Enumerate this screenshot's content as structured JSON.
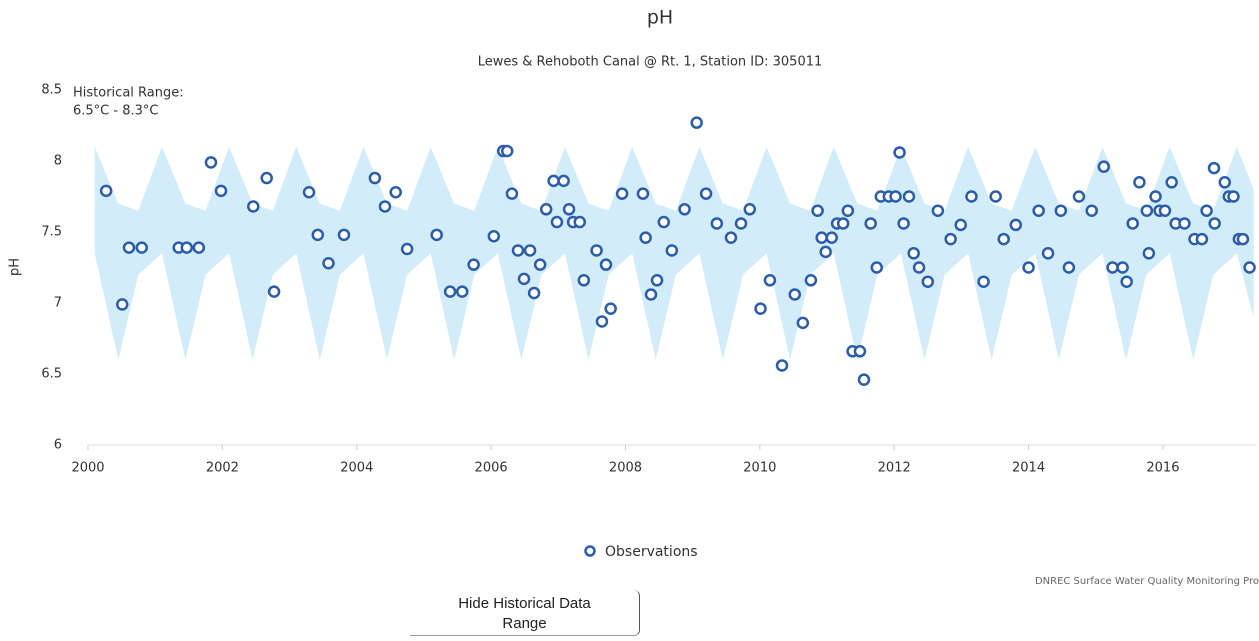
{
  "chart_data": {
    "type": "scatter",
    "title": "pH",
    "subtitle": "Lewes & Rehoboth Canal @ Rt. 1, Station ID: 305011",
    "y_label": "pH",
    "annotation": [
      "Historical Range:",
      "6.5°C - 8.3°C"
    ],
    "credit": "DNREC Surface Water Quality Monitoring Pro",
    "button": [
      "Hide Historical Data",
      "Range"
    ],
    "xlim": [
      2000,
      2017.4
    ],
    "xticks": [
      2000,
      2002,
      2004,
      2006,
      2008,
      2010,
      2012,
      2014,
      2016
    ],
    "ylim": [
      6,
      8.5
    ],
    "yticks": [
      6,
      6.5,
      7,
      7.5,
      8,
      8.5
    ],
    "grid": false,
    "band": {
      "color": "#cdeaf8",
      "x": [
        2000.1,
        2000.45,
        2000.75,
        2001.1,
        2001.45,
        2001.75,
        2002.1,
        2002.45,
        2002.75,
        2003.1,
        2003.45,
        2003.75,
        2004.1,
        2004.45,
        2004.75,
        2005.1,
        2005.45,
        2005.75,
        2006.1,
        2006.45,
        2006.75,
        2007.1,
        2007.45,
        2007.75,
        2008.1,
        2008.45,
        2008.75,
        2009.1,
        2009.45,
        2009.75,
        2010.1,
        2010.45,
        2010.75,
        2011.1,
        2011.45,
        2011.75,
        2012.1,
        2012.45,
        2012.75,
        2013.1,
        2013.45,
        2013.75,
        2014.1,
        2014.45,
        2014.75,
        2015.1,
        2015.45,
        2015.75,
        2016.1,
        2016.45,
        2016.75,
        2017.1,
        2017.35
      ],
      "upper": [
        8.1,
        7.7,
        7.65,
        8.1,
        7.7,
        7.65,
        8.1,
        7.7,
        7.65,
        8.1,
        7.7,
        7.65,
        8.1,
        7.7,
        7.65,
        8.1,
        7.7,
        7.65,
        8.1,
        7.7,
        7.65,
        8.1,
        7.7,
        7.65,
        8.1,
        7.7,
        7.65,
        8.1,
        7.7,
        7.65,
        8.1,
        7.7,
        7.65,
        8.1,
        7.7,
        7.65,
        8.1,
        7.7,
        7.65,
        8.1,
        7.7,
        7.65,
        8.1,
        7.7,
        7.65,
        8.1,
        7.7,
        7.65,
        8.1,
        7.7,
        7.65,
        8.1,
        7.8
      ],
      "lower": [
        7.35,
        6.6,
        7.2,
        7.35,
        6.6,
        7.2,
        7.35,
        6.6,
        7.2,
        7.35,
        6.6,
        7.2,
        7.35,
        6.6,
        7.2,
        7.35,
        6.6,
        7.2,
        7.35,
        6.6,
        7.2,
        7.35,
        6.6,
        7.2,
        7.35,
        6.6,
        7.2,
        7.35,
        6.6,
        7.2,
        7.35,
        6.6,
        7.2,
        7.35,
        6.6,
        7.2,
        7.35,
        6.6,
        7.2,
        7.35,
        6.6,
        7.2,
        7.35,
        6.6,
        7.2,
        7.35,
        6.6,
        7.2,
        7.35,
        6.6,
        7.2,
        7.35,
        6.9
      ]
    },
    "series": [
      {
        "name": "Observations",
        "color": "#2a5db0",
        "x": [
          2000.27,
          2000.51,
          2000.61,
          2000.8,
          2001.35,
          2001.47,
          2001.65,
          2001.83,
          2001.98,
          2002.46,
          2002.66,
          2002.77,
          2003.29,
          2003.42,
          2003.58,
          2003.81,
          2004.27,
          2004.42,
          2004.58,
          2004.75,
          2005.19,
          2005.39,
          2005.57,
          2005.74,
          2006.04,
          2006.18,
          2006.24,
          2006.31,
          2006.4,
          2006.49,
          2006.58,
          2006.64,
          2006.73,
          2006.82,
          2006.93,
          2006.98,
          2007.08,
          2007.16,
          2007.22,
          2007.32,
          2007.38,
          2007.57,
          2007.65,
          2007.71,
          2007.78,
          2007.95,
          2008.26,
          2008.3,
          2008.38,
          2008.47,
          2008.57,
          2008.69,
          2008.88,
          2009.06,
          2009.2,
          2009.36,
          2009.57,
          2009.72,
          2009.85,
          2010.01,
          2010.15,
          2010.33,
          2010.52,
          2010.64,
          2010.76,
          2010.86,
          2010.92,
          2010.98,
          2011.07,
          2011.15,
          2011.24,
          2011.31,
          2011.38,
          2011.49,
          2011.55,
          2011.65,
          2011.74,
          2011.8,
          2011.92,
          2012.02,
          2012.08,
          2012.14,
          2012.22,
          2012.29,
          2012.37,
          2012.5,
          2012.65,
          2012.84,
          2012.99,
          2013.15,
          2013.33,
          2013.51,
          2013.63,
          2013.81,
          2014.0,
          2014.15,
          2014.29,
          2014.48,
          2014.6,
          2014.75,
          2014.94,
          2015.12,
          2015.25,
          2015.4,
          2015.46,
          2015.55,
          2015.65,
          2015.76,
          2015.79,
          2015.89,
          2015.95,
          2016.03,
          2016.13,
          2016.19,
          2016.32,
          2016.47,
          2016.58,
          2016.65,
          2016.76,
          2016.77,
          2016.92,
          2016.98,
          2017.05,
          2017.13,
          2017.19,
          2017.29
        ],
        "values": [
          7.79,
          6.99,
          7.39,
          7.39,
          7.39,
          7.39,
          7.39,
          7.99,
          7.79,
          7.68,
          7.88,
          7.08,
          7.78,
          7.48,
          7.28,
          7.48,
          7.88,
          7.68,
          7.78,
          7.38,
          7.48,
          7.08,
          7.08,
          7.27,
          7.47,
          8.07,
          8.07,
          7.77,
          7.37,
          7.17,
          7.37,
          7.07,
          7.27,
          7.66,
          7.86,
          7.57,
          7.86,
          7.66,
          7.57,
          7.57,
          7.16,
          7.37,
          6.87,
          7.27,
          6.96,
          7.77,
          7.77,
          7.46,
          7.06,
          7.16,
          7.57,
          7.37,
          7.66,
          8.27,
          7.77,
          7.56,
          7.46,
          7.56,
          7.66,
          6.96,
          7.16,
          6.56,
          7.06,
          6.86,
          7.16,
          7.65,
          7.46,
          7.36,
          7.46,
          7.56,
          7.56,
          7.65,
          6.66,
          6.66,
          6.46,
          7.56,
          7.25,
          7.75,
          7.75,
          7.75,
          8.06,
          7.56,
          7.75,
          7.35,
          7.25,
          7.15,
          7.65,
          7.45,
          7.55,
          7.75,
          7.15,
          7.75,
          7.45,
          7.55,
          7.25,
          7.65,
          7.35,
          7.65,
          7.25,
          7.75,
          7.65,
          7.96,
          7.25,
          7.25,
          7.15,
          7.56,
          7.85,
          7.65,
          7.35,
          7.75,
          7.65,
          7.65,
          7.85,
          7.56,
          7.56,
          7.45,
          7.45,
          7.65,
          7.95,
          7.56,
          7.85,
          7.75,
          7.75,
          7.45,
          7.45,
          7.25
        ]
      }
    ]
  }
}
